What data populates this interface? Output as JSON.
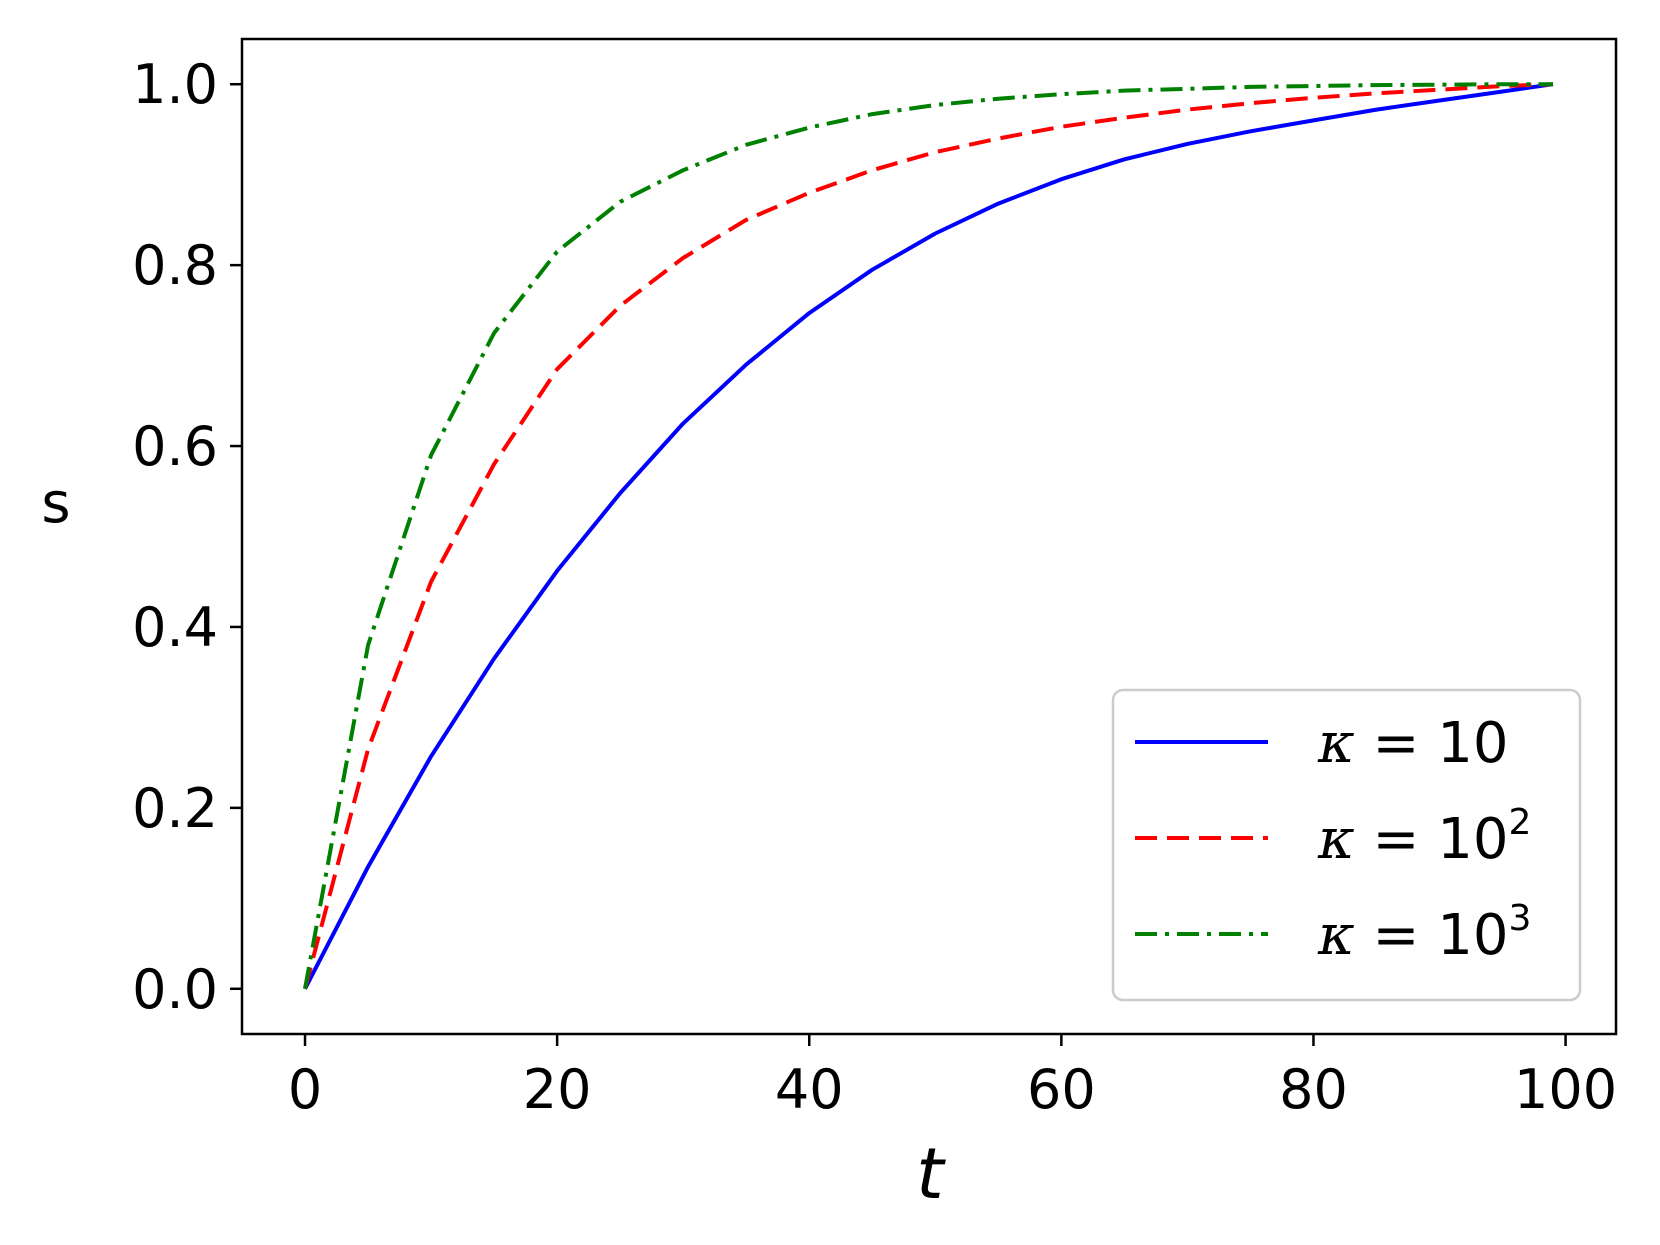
{
  "chart_data": {
    "type": "line",
    "xlabel": "t",
    "ylabel": "s",
    "xlim": [
      -5,
      104
    ],
    "ylim": [
      -0.05,
      1.05
    ],
    "xticks": [
      0,
      20,
      40,
      60,
      80,
      100
    ],
    "xtick_labels": [
      "0",
      "20",
      "40",
      "60",
      "80",
      "100"
    ],
    "yticks": [
      0.0,
      0.2,
      0.4,
      0.6,
      0.8,
      1.0
    ],
    "ytick_labels": [
      "0.0",
      "0.2",
      "0.4",
      "0.6",
      "0.8",
      "1.0"
    ],
    "grid": false,
    "legend": {
      "placement": "bottom-right"
    },
    "x": [
      0,
      5,
      10,
      15,
      20,
      25,
      30,
      35,
      40,
      45,
      50,
      55,
      60,
      65,
      70,
      75,
      80,
      85,
      90,
      95,
      99
    ],
    "series": [
      {
        "name": "κ = 10",
        "label_var": "κ",
        "label_eq": " = 10",
        "label_sup": "",
        "color": "#0000ff",
        "dash": "solid",
        "values": [
          0.0,
          0.135,
          0.257,
          0.365,
          0.462,
          0.548,
          0.625,
          0.69,
          0.747,
          0.795,
          0.835,
          0.868,
          0.895,
          0.917,
          0.934,
          0.948,
          0.96,
          0.972,
          0.982,
          0.992,
          1.0
        ]
      },
      {
        "name": "κ = 10²",
        "label_var": "κ",
        "label_eq": " = 10",
        "label_sup": "2",
        "color": "#ff0000",
        "dash": "dashed",
        "values": [
          0.0,
          0.265,
          0.45,
          0.58,
          0.685,
          0.755,
          0.808,
          0.85,
          0.88,
          0.905,
          0.925,
          0.94,
          0.953,
          0.963,
          0.972,
          0.979,
          0.985,
          0.99,
          0.994,
          0.998,
          1.0
        ]
      },
      {
        "name": "κ = 10³",
        "label_var": "κ",
        "label_eq": " = 10",
        "label_sup": "3",
        "color": "#008000",
        "dash": "dashdot",
        "values": [
          0.0,
          0.38,
          0.59,
          0.725,
          0.815,
          0.87,
          0.905,
          0.933,
          0.952,
          0.967,
          0.977,
          0.984,
          0.989,
          0.993,
          0.995,
          0.997,
          0.998,
          0.999,
          0.9995,
          1.0,
          1.0
        ]
      }
    ]
  }
}
